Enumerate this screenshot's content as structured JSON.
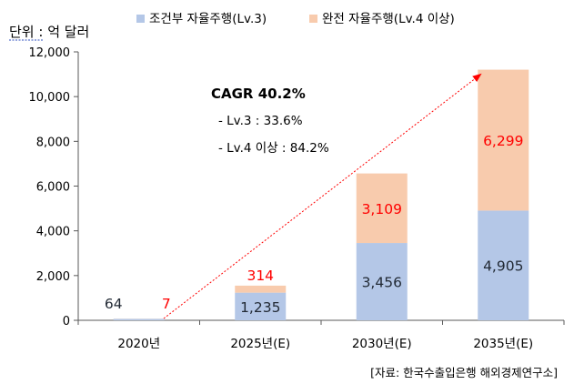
{
  "unit_label": "단위 : 억 달러",
  "source_note": "[자료: 한국수출입은행 해외경제연구소]",
  "annotation": {
    "title": "CAGR 40.2%",
    "lines": [
      "-  Lv.3 : 33.6%",
      "-  Lv.4 이상 : 84.2%"
    ]
  },
  "colors": {
    "lv3": "#b4c7e7",
    "lv4": "#f8cbad",
    "lv3_label": "#222a35",
    "lv4_label": "#ff0000",
    "arrow": "#ff0000",
    "axis_text": "#000000",
    "grid": "#d9d9d9"
  },
  "chart_data": {
    "type": "bar",
    "stacked": true,
    "categories": [
      "2020년",
      "2025년(E)",
      "2030년(E)",
      "2035년(E)"
    ],
    "series": [
      {
        "name": "조건부 자율주행(Lv.3)",
        "values": [
          64,
          1235,
          3456,
          4905
        ]
      },
      {
        "name": "완전 자율주행(Lv.4 이상)",
        "values": [
          7,
          314,
          3109,
          6299
        ]
      }
    ],
    "data_labels": {
      "lv3": [
        "64",
        "1,235",
        "3,456",
        "4,905"
      ],
      "lv4": [
        "7",
        "314",
        "3,109",
        "6,299"
      ]
    },
    "ylim": [
      0,
      12000
    ],
    "yticks": [
      0,
      2000,
      4000,
      6000,
      8000,
      10000,
      12000
    ],
    "ytick_labels": [
      "0",
      "2,000",
      "4,000",
      "6,000",
      "8,000",
      "10,000",
      "12,000"
    ],
    "grid": false,
    "legend_position": "top"
  }
}
